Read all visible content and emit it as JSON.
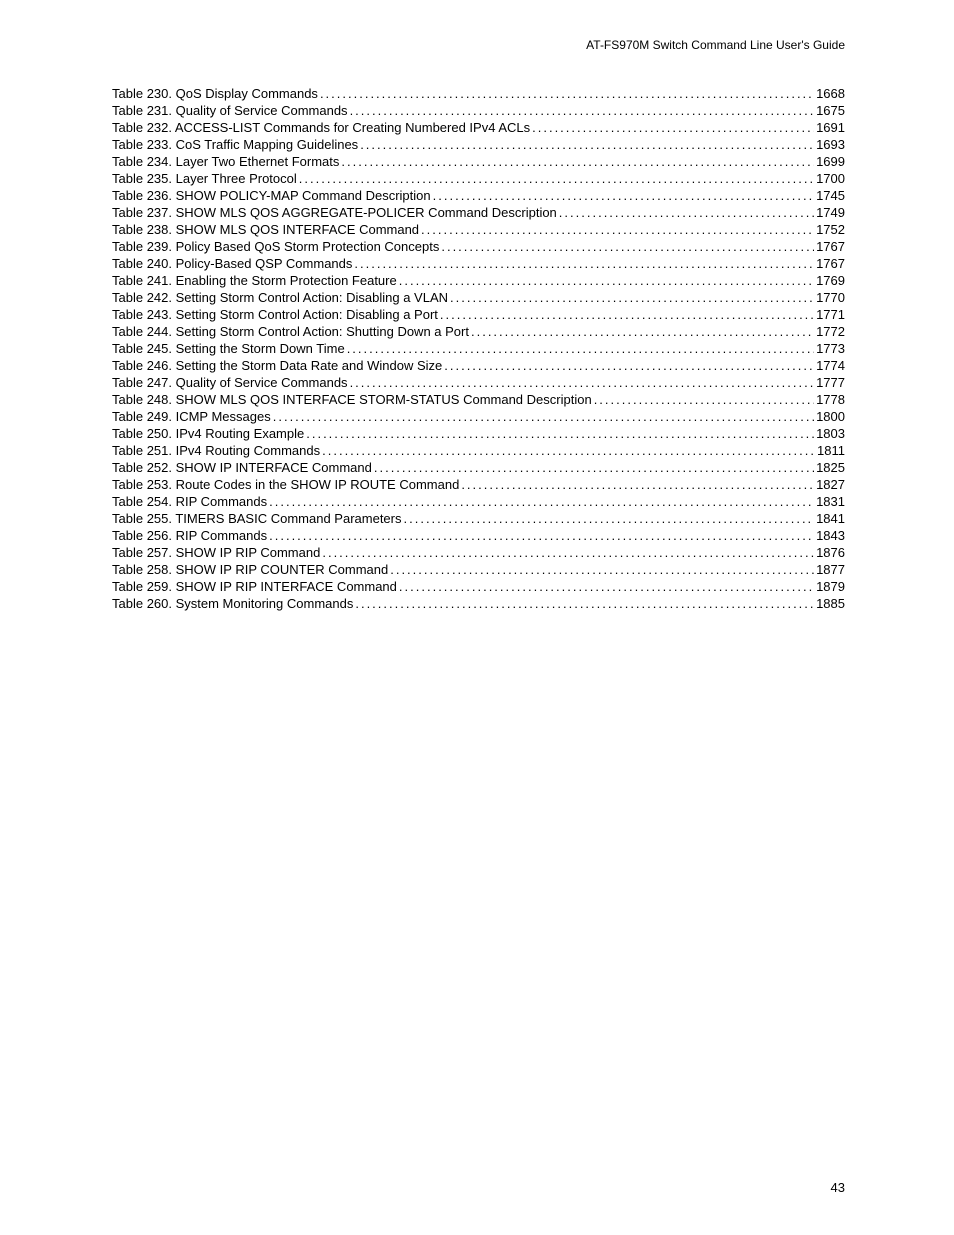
{
  "header_title": "AT-FS970M Switch Command Line User's Guide",
  "page_number": "43",
  "toc_entries": [
    {
      "label": "Table 230. QoS Display Commands",
      "page": "1668"
    },
    {
      "label": "Table 231. Quality of Service Commands",
      "page": "1675"
    },
    {
      "label": "Table 232. ACCESS-LIST Commands for Creating Numbered IPv4 ACLs",
      "page": "1691"
    },
    {
      "label": "Table 233. CoS Traffic Mapping Guidelines",
      "page": "1693"
    },
    {
      "label": "Table 234. Layer Two Ethernet Formats",
      "page": "1699"
    },
    {
      "label": "Table 235. Layer Three Protocol",
      "page": "1700"
    },
    {
      "label": "Table 236. SHOW POLICY-MAP Command Description",
      "page": "1745"
    },
    {
      "label": "Table 237. SHOW MLS QOS AGGREGATE-POLICER Command Description",
      "page": "1749"
    },
    {
      "label": "Table 238. SHOW MLS QOS INTERFACE Command",
      "page": "1752"
    },
    {
      "label": "Table 239. Policy Based QoS Storm Protection Concepts",
      "page": "1767"
    },
    {
      "label": "Table 240. Policy-Based QSP Commands",
      "page": "1767"
    },
    {
      "label": "Table 241. Enabling the Storm Protection Feature",
      "page": "1769"
    },
    {
      "label": "Table 242. Setting Storm Control Action: Disabling a VLAN",
      "page": "1770"
    },
    {
      "label": "Table 243. Setting Storm Control Action: Disabling a Port",
      "page": "1771"
    },
    {
      "label": "Table 244. Setting Storm Control Action: Shutting Down a Port",
      "page": "1772"
    },
    {
      "label": "Table 245. Setting the Storm Down Time",
      "page": "1773"
    },
    {
      "label": "Table 246. Setting the Storm Data Rate and Window Size",
      "page": "1774"
    },
    {
      "label": "Table 247. Quality of Service Commands",
      "page": "1777"
    },
    {
      "label": "Table 248. SHOW MLS QOS INTERFACE STORM-STATUS Command Description",
      "page": "1778"
    },
    {
      "label": "Table 249. ICMP Messages",
      "page": "1800"
    },
    {
      "label": "Table 250. IPv4 Routing Example",
      "page": "1803"
    },
    {
      "label": "Table 251. IPv4 Routing Commands",
      "page": "1811"
    },
    {
      "label": "Table 252. SHOW IP INTERFACE Command",
      "page": "1825"
    },
    {
      "label": "Table 253. Route Codes in the SHOW IP ROUTE Command",
      "page": "1827"
    },
    {
      "label": "Table 254. RIP Commands",
      "page": "1831"
    },
    {
      "label": "Table 255. TIMERS BASIC Command Parameters",
      "page": "1841"
    },
    {
      "label": "Table 256. RIP Commands",
      "page": "1843"
    },
    {
      "label": "Table 257. SHOW IP RIP Command",
      "page": "1876"
    },
    {
      "label": "Table 258. SHOW IP RIP COUNTER Command",
      "page": "1877"
    },
    {
      "label": "Table 259. SHOW IP RIP INTERFACE Command",
      "page": "1879"
    },
    {
      "label": "Table 260. System Monitoring Commands",
      "page": "1885"
    }
  ]
}
